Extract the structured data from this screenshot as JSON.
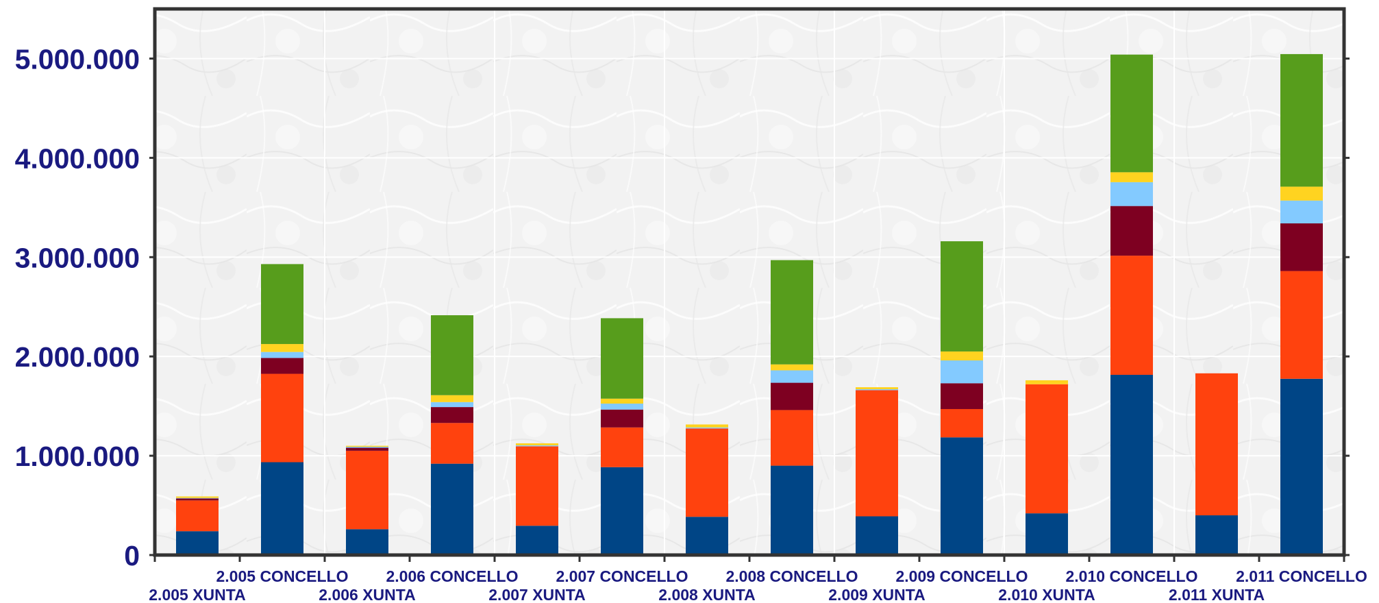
{
  "chart_data": {
    "type": "bar",
    "stacked": true,
    "title": "",
    "xlabel": "",
    "ylabel": "",
    "ylim": [
      0,
      5500000
    ],
    "yticks": [
      0,
      1000000,
      2000000,
      3000000,
      4000000,
      5000000
    ],
    "ytick_labels": [
      "0",
      "1.000.000",
      "2.000.000",
      "3.000.000",
      "4.000.000",
      "5.000.000"
    ],
    "grid": true,
    "legend": "none",
    "categories": [
      "2.005 XUNTA",
      "2.005 CONCELLO",
      "2.006 XUNTA",
      "2.006 CONCELLO",
      "2.007 XUNTA",
      "2.007 CONCELLO",
      "2.008 XUNTA",
      "2.008 CONCELLO",
      "2.009 XUNTA",
      "2.009 CONCELLO",
      "2.010 XUNTA",
      "2.010 CONCELLO",
      "2.011 XUNTA",
      "2.011 CONCELLO"
    ],
    "series": [
      {
        "color": "#004586",
        "values": [
          240000,
          935000,
          260000,
          920000,
          295000,
          885000,
          385000,
          900000,
          390000,
          1185000,
          420000,
          1815000,
          400000,
          1775000
        ]
      },
      {
        "color": "#ff420e",
        "values": [
          310000,
          890000,
          790000,
          410000,
          800000,
          400000,
          890000,
          560000,
          1270000,
          285000,
          1300000,
          1200000,
          1430000,
          1085000
        ]
      },
      {
        "color": "#7e0021",
        "values": [
          20000,
          160000,
          30000,
          160000,
          0,
          180000,
          0,
          275000,
          0,
          260000,
          0,
          500000,
          0,
          480000
        ]
      },
      {
        "color": "#83caff",
        "values": [
          5000,
          60000,
          10000,
          50000,
          10000,
          60000,
          10000,
          125000,
          10000,
          230000,
          0,
          240000,
          0,
          230000
        ]
      },
      {
        "color": "#ffd320",
        "values": [
          15000,
          80000,
          10000,
          70000,
          20000,
          50000,
          30000,
          60000,
          20000,
          90000,
          40000,
          100000,
          0,
          140000
        ]
      },
      {
        "color": "#579d1c",
        "values": [
          0,
          805000,
          0,
          805000,
          0,
          810000,
          0,
          1050000,
          0,
          1110000,
          0,
          1185000,
          0,
          1335000
        ]
      }
    ]
  }
}
